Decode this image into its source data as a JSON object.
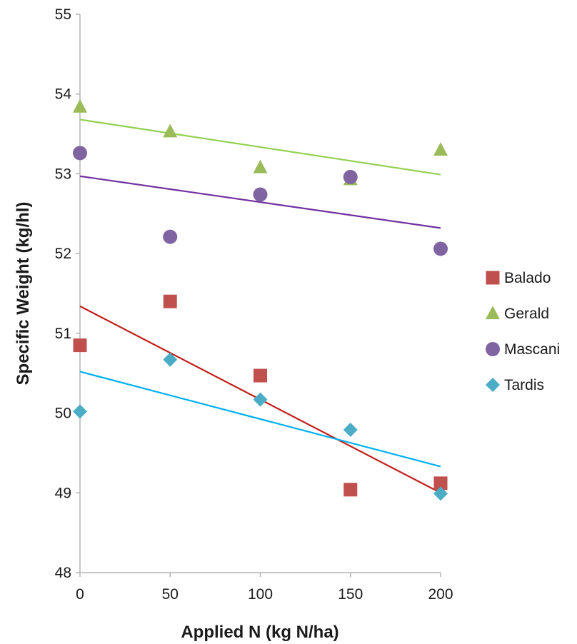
{
  "chart_data": {
    "type": "scatter",
    "title": "",
    "xlabel": "Applied N (kg N/ha)",
    "ylabel": "Specific Weight (kg/hl)",
    "xlim": [
      0,
      200
    ],
    "ylim": [
      48,
      55
    ],
    "x_ticks": [
      "0",
      "50",
      "100",
      "150",
      "200"
    ],
    "y_ticks": [
      "48",
      "49",
      "50",
      "51",
      "52",
      "53",
      "54",
      "55"
    ],
    "grid": false,
    "legend_position": "right",
    "x": [
      0,
      50,
      100,
      150,
      200
    ],
    "series": [
      {
        "name": "Balado",
        "marker": "square",
        "color": "#c0504d",
        "trend_color": "#c0201c",
        "values": [
          50.85,
          51.4,
          50.47,
          49.04,
          49.12
        ],
        "trendline": [
          51.34,
          49.0
        ]
      },
      {
        "name": "Gerald",
        "marker": "triangle",
        "color": "#9bbb59",
        "trend_color": "#92d050",
        "values": [
          53.84,
          53.53,
          53.08,
          52.93,
          53.3
        ],
        "trendline": [
          53.68,
          52.99
        ]
      },
      {
        "name": "Mascani",
        "marker": "circle",
        "color": "#8064a2",
        "trend_color": "#7030a0",
        "values": [
          53.26,
          52.21,
          52.74,
          52.96,
          52.06
        ],
        "trendline": [
          52.97,
          52.32
        ]
      },
      {
        "name": "Tardis",
        "marker": "diamond",
        "color": "#4bacc6",
        "trend_color": "#00b0f0",
        "values": [
          50.02,
          50.67,
          50.17,
          49.79,
          48.99
        ],
        "trendline": [
          50.52,
          49.33
        ]
      }
    ]
  }
}
